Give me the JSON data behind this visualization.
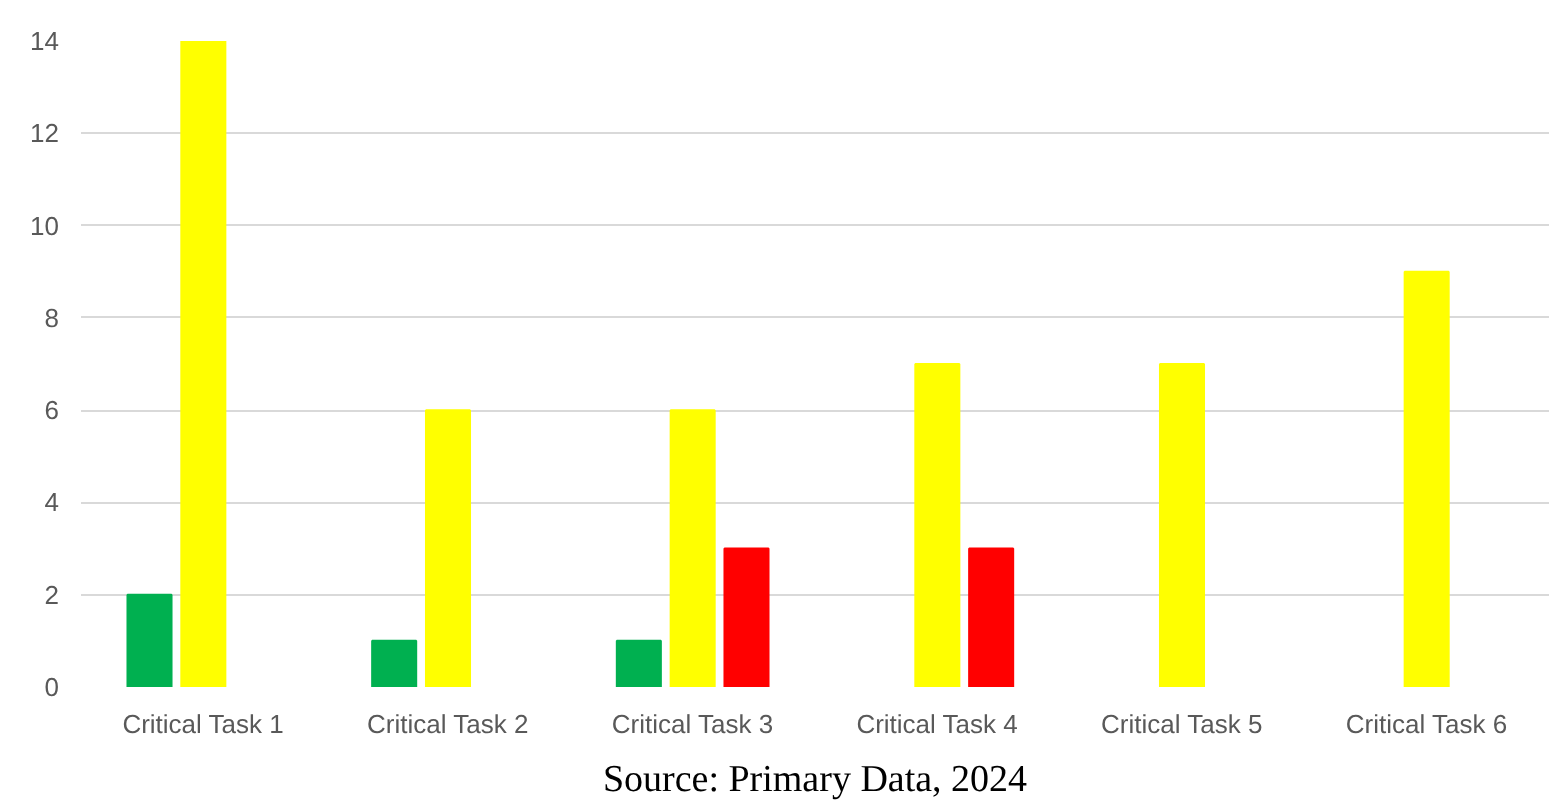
{
  "chart_data": {
    "type": "bar",
    "categories": [
      "Critical Task 1",
      "Critical Task 2",
      "Critical Task 3",
      "Critical Task 4",
      "Critical Task 5",
      "Critical Task 6"
    ],
    "series": [
      {
        "color": "#00b050",
        "values": [
          2,
          1,
          1,
          null,
          null,
          null
        ]
      },
      {
        "color": "#ffff00",
        "values": [
          14,
          6,
          6,
          7,
          7,
          9
        ]
      },
      {
        "color": "#ff0000",
        "values": [
          null,
          null,
          3,
          3,
          null,
          null
        ]
      }
    ],
    "ylim": [
      0,
      14
    ],
    "yticks": [
      0,
      2,
      4,
      6,
      8,
      10,
      12,
      14
    ],
    "grid": "y",
    "annotations": [
      "Source: Primary Data, 2024"
    ]
  }
}
